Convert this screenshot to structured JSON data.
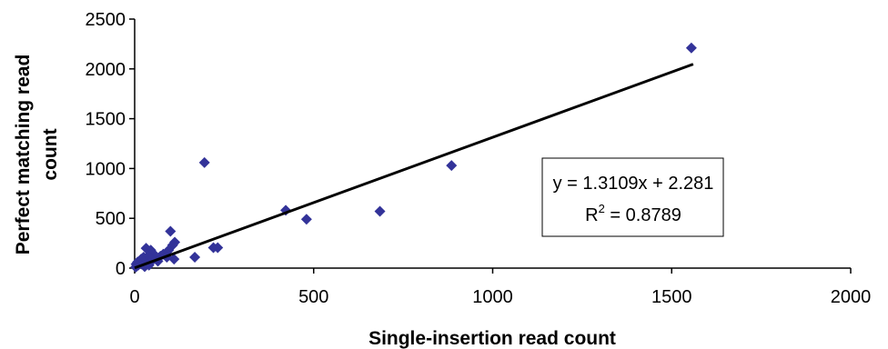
{
  "chart_data": {
    "type": "scatter",
    "xlabel": "Single-insertion read count",
    "ylabel_lines": [
      "Perfect matching read",
      "count"
    ],
    "xlim": [
      0,
      2000
    ],
    "ylim": [
      0,
      2500
    ],
    "xticks": [
      0,
      500,
      1000,
      1500,
      2000
    ],
    "yticks": [
      0,
      500,
      1000,
      1500,
      2000,
      2500
    ],
    "grid": false,
    "marker_color": "#333399",
    "trendline": {
      "slope": 1.3109,
      "intercept": 2.281,
      "x_range": [
        0,
        1560
      ],
      "equation": "y = 1.3109x + 2.281",
      "r2_label": "R",
      "r2_sup": "2",
      "r2_value": " = 0.8789"
    },
    "points": [
      {
        "x": 1555,
        "y": 2210
      },
      {
        "x": 885,
        "y": 1030
      },
      {
        "x": 685,
        "y": 570
      },
      {
        "x": 480,
        "y": 490
      },
      {
        "x": 422,
        "y": 580
      },
      {
        "x": 195,
        "y": 1060
      },
      {
        "x": 100,
        "y": 370
      },
      {
        "x": 220,
        "y": 205
      },
      {
        "x": 232,
        "y": 205
      },
      {
        "x": 168,
        "y": 110
      },
      {
        "x": 112,
        "y": 260
      },
      {
        "x": 106,
        "y": 230
      },
      {
        "x": 95,
        "y": 180
      },
      {
        "x": 88,
        "y": 150
      },
      {
        "x": 80,
        "y": 140
      },
      {
        "x": 72,
        "y": 120
      },
      {
        "x": 62,
        "y": 100
      },
      {
        "x": 55,
        "y": 135
      },
      {
        "x": 50,
        "y": 80
      },
      {
        "x": 45,
        "y": 180
      },
      {
        "x": 38,
        "y": 120
      },
      {
        "x": 32,
        "y": 200
      },
      {
        "x": 30,
        "y": 60
      },
      {
        "x": 25,
        "y": 110
      },
      {
        "x": 20,
        "y": 40
      },
      {
        "x": 18,
        "y": 90
      },
      {
        "x": 15,
        "y": 70
      },
      {
        "x": 12,
        "y": 50
      },
      {
        "x": 10,
        "y": 30
      },
      {
        "x": 8,
        "y": 60
      },
      {
        "x": 6,
        "y": 20
      },
      {
        "x": 4,
        "y": 40
      },
      {
        "x": 3,
        "y": 10
      },
      {
        "x": 110,
        "y": 90
      },
      {
        "x": 65,
        "y": 70
      },
      {
        "x": 40,
        "y": 30
      },
      {
        "x": 28,
        "y": 15
      },
      {
        "x": 90,
        "y": 110
      }
    ]
  }
}
